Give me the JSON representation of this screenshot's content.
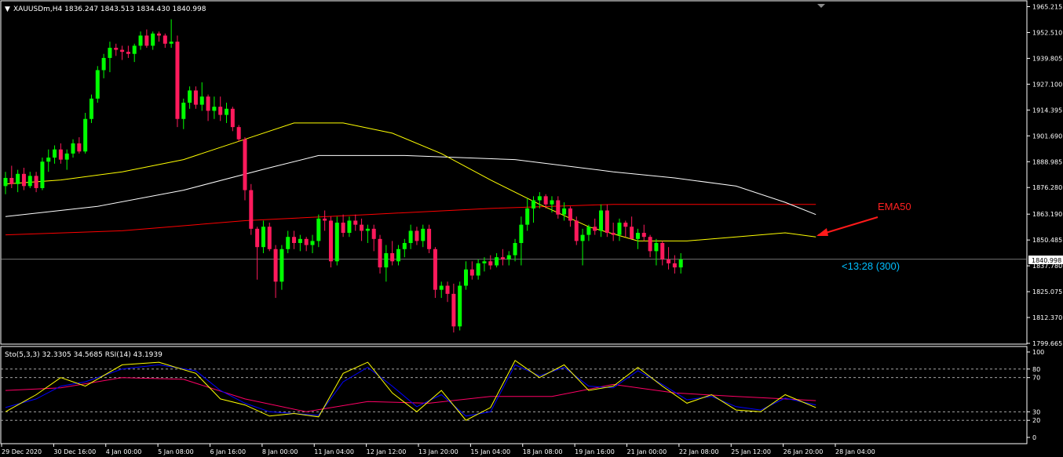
{
  "window": {
    "header": "XAUUSDm,H4  1836.247 1843.513 1834.430 1840.998",
    "collapse_glyph": "▼"
  },
  "indicator": {
    "header": "Sto(5,3,3) 32.3305 34.5685  RSI(14) 43.1939"
  },
  "annotation": {
    "label": "EMA50",
    "countdown": "<13:28 (300)",
    "label_color": "#ff0000",
    "countdown_color": "#00bfff"
  },
  "price_badge": "1840.998",
  "colors": {
    "background": "#000000",
    "bull": "#00ff00",
    "bear": "#ff1a5c",
    "ema_fast": "#ffff00",
    "ema_mid": "#ffffff",
    "ema_slow": "#ff0000",
    "stoch_main": "#ffff00",
    "stoch_signal": "#0000ff",
    "rsi": "#ff0066"
  },
  "chart_data": {
    "type": "candlestick",
    "symbol": "XAUUSDm",
    "timeframe": "H4",
    "ylim": [
      1799.665,
      1965.215
    ],
    "price_ticks": [
      "1965.215",
      "1952.510",
      "1939.805",
      "1927.100",
      "1914.395",
      "1901.690",
      "1888.985",
      "1876.280",
      "1863.190",
      "1850.485",
      "1837.780",
      "1825.075",
      "1812.370",
      "1799.665"
    ],
    "last_price": 1840.998,
    "x_labels": [
      "29 Dec 2020",
      "30 Dec 16:00",
      "4 Jan 00:00",
      "5 Jan 08:00",
      "6 Jan 16:00",
      "8 Jan 00:00",
      "11 Jan 04:00",
      "12 Jan 12:00",
      "13 Jan 20:00",
      "15 Jan 04:00",
      "18 Jan 08:00",
      "19 Jan 16:00",
      "21 Jan 00:00",
      "22 Jan 08:00",
      "25 Jan 12:00",
      "26 Jan 20:00",
      "28 Jan 04:00"
    ],
    "ohlc": [
      [
        1877,
        1884,
        1873,
        1881
      ],
      [
        1881,
        1887,
        1876,
        1878
      ],
      [
        1878,
        1885,
        1874,
        1883
      ],
      [
        1883,
        1886,
        1875,
        1877
      ],
      [
        1877,
        1884,
        1876,
        1882
      ],
      [
        1882,
        1884,
        1874,
        1876
      ],
      [
        1876,
        1891,
        1875,
        1889
      ],
      [
        1889,
        1895,
        1884,
        1891
      ],
      [
        1891,
        1897,
        1888,
        1895
      ],
      [
        1895,
        1898,
        1888,
        1890
      ],
      [
        1890,
        1895,
        1885,
        1893
      ],
      [
        1893,
        1900,
        1891,
        1898
      ],
      [
        1898,
        1901,
        1893,
        1894
      ],
      [
        1894,
        1913,
        1893,
        1910
      ],
      [
        1910,
        1922,
        1908,
        1920
      ],
      [
        1920,
        1936,
        1918,
        1934
      ],
      [
        1934,
        1942,
        1930,
        1940
      ],
      [
        1940,
        1948,
        1933,
        1945
      ],
      [
        1945,
        1947,
        1941,
        1944
      ],
      [
        1944,
        1946,
        1939,
        1943
      ],
      [
        1943,
        1946,
        1940,
        1942
      ],
      [
        1942,
        1947,
        1938,
        1946
      ],
      [
        1946,
        1953,
        1944,
        1951
      ],
      [
        1951,
        1954,
        1945,
        1946
      ],
      [
        1946,
        1953,
        1944,
        1952
      ],
      [
        1952,
        1953,
        1948,
        1951
      ],
      [
        1951,
        1952,
        1945,
        1947
      ],
      [
        1947,
        1959,
        1945,
        1948
      ],
      [
        1948,
        1951,
        1906,
        1910
      ],
      [
        1910,
        1920,
        1905,
        1918
      ],
      [
        1918,
        1926,
        1915,
        1924
      ],
      [
        1924,
        1926,
        1915,
        1917
      ],
      [
        1917,
        1928,
        1914,
        1921
      ],
      [
        1921,
        1922,
        1909,
        1914
      ],
      [
        1914,
        1921,
        1910,
        1916
      ],
      [
        1916,
        1921,
        1909,
        1912
      ],
      [
        1912,
        1918,
        1908,
        1915
      ],
      [
        1915,
        1916,
        1904,
        1906
      ],
      [
        1906,
        1907,
        1899,
        1900
      ],
      [
        1900,
        1901,
        1870,
        1875
      ],
      [
        1875,
        1878,
        1853,
        1856
      ],
      [
        1856,
        1857,
        1831,
        1847
      ],
      [
        1847,
        1860,
        1844,
        1857
      ],
      [
        1857,
        1859,
        1845,
        1846
      ],
      [
        1846,
        1848,
        1822,
        1830
      ],
      [
        1830,
        1848,
        1826,
        1846
      ],
      [
        1846,
        1855,
        1844,
        1852
      ],
      [
        1852,
        1855,
        1846,
        1849
      ],
      [
        1849,
        1853,
        1845,
        1851
      ],
      [
        1851,
        1852,
        1845,
        1848
      ],
      [
        1848,
        1853,
        1844,
        1850
      ],
      [
        1850,
        1863,
        1847,
        1861
      ],
      [
        1861,
        1865,
        1855,
        1860
      ],
      [
        1860,
        1862,
        1837,
        1840
      ],
      [
        1840,
        1862,
        1838,
        1859
      ],
      [
        1859,
        1863,
        1852,
        1854
      ],
      [
        1854,
        1862,
        1852,
        1860
      ],
      [
        1860,
        1863,
        1855,
        1858
      ],
      [
        1858,
        1861,
        1850,
        1855
      ],
      [
        1855,
        1858,
        1849,
        1856
      ],
      [
        1856,
        1858,
        1845,
        1851
      ],
      [
        1851,
        1853,
        1834,
        1837
      ],
      [
        1837,
        1848,
        1830,
        1844
      ],
      [
        1844,
        1850,
        1838,
        1840
      ],
      [
        1840,
        1848,
        1838,
        1846
      ],
      [
        1846,
        1851,
        1842,
        1849
      ],
      [
        1849,
        1858,
        1846,
        1855
      ],
      [
        1855,
        1857,
        1848,
        1850
      ],
      [
        1850,
        1858,
        1847,
        1856
      ],
      [
        1856,
        1858,
        1844,
        1846
      ],
      [
        1846,
        1847,
        1822,
        1826
      ],
      [
        1826,
        1830,
        1822,
        1828
      ],
      [
        1828,
        1830,
        1820,
        1824
      ],
      [
        1824,
        1829,
        1805,
        1808
      ],
      [
        1808,
        1830,
        1806,
        1828
      ],
      [
        1828,
        1840,
        1826,
        1836
      ],
      [
        1836,
        1840,
        1831,
        1833
      ],
      [
        1833,
        1841,
        1831,
        1839
      ],
      [
        1839,
        1842,
        1835,
        1840
      ],
      [
        1840,
        1843,
        1836,
        1838
      ],
      [
        1838,
        1844,
        1837,
        1842
      ],
      [
        1842,
        1846,
        1838,
        1841
      ],
      [
        1841,
        1845,
        1838,
        1843
      ],
      [
        1843,
        1851,
        1840,
        1849
      ],
      [
        1849,
        1862,
        1838,
        1858
      ],
      [
        1858,
        1871,
        1855,
        1866
      ],
      [
        1866,
        1872,
        1859,
        1870
      ],
      [
        1870,
        1874,
        1866,
        1872
      ],
      [
        1872,
        1873,
        1866,
        1868
      ],
      [
        1868,
        1872,
        1864,
        1870
      ],
      [
        1870,
        1872,
        1861,
        1863
      ],
      [
        1863,
        1869,
        1860,
        1866
      ],
      [
        1866,
        1867,
        1857,
        1860
      ],
      [
        1860,
        1862,
        1848,
        1850
      ],
      [
        1850,
        1856,
        1838,
        1853
      ],
      [
        1853,
        1858,
        1850,
        1857
      ],
      [
        1857,
        1861,
        1853,
        1855
      ],
      [
        1855,
        1868,
        1852,
        1865
      ],
      [
        1865,
        1868,
        1852,
        1854
      ],
      [
        1854,
        1859,
        1850,
        1853
      ],
      [
        1853,
        1861,
        1850,
        1859
      ],
      [
        1859,
        1860,
        1852,
        1857
      ],
      [
        1857,
        1862,
        1852,
        1851
      ],
      [
        1851,
        1856,
        1846,
        1854
      ],
      [
        1854,
        1858,
        1850,
        1852
      ],
      [
        1852,
        1853,
        1842,
        1845
      ],
      [
        1845,
        1851,
        1838,
        1849
      ],
      [
        1849,
        1850,
        1838,
        1841
      ],
      [
        1841,
        1847,
        1836,
        1839
      ],
      [
        1839,
        1843,
        1834,
        1837
      ],
      [
        1837,
        1844,
        1834,
        1841
      ]
    ],
    "ema_fast": [
      [
        1,
        1878
      ],
      [
        10,
        1880
      ],
      [
        20,
        1884
      ],
      [
        30,
        1890
      ],
      [
        40,
        1900
      ],
      [
        48,
        1908
      ],
      [
        56,
        1908
      ],
      [
        64,
        1903
      ],
      [
        72,
        1893
      ],
      [
        80,
        1880
      ],
      [
        88,
        1868
      ],
      [
        96,
        1857
      ],
      [
        104,
        1850
      ],
      [
        112,
        1850
      ],
      [
        120,
        1852
      ],
      [
        128,
        1854
      ],
      [
        133,
        1852
      ]
    ],
    "ema_mid": [
      [
        1,
        1862
      ],
      [
        16,
        1867
      ],
      [
        30,
        1875
      ],
      [
        44,
        1886
      ],
      [
        52,
        1892
      ],
      [
        66,
        1892
      ],
      [
        84,
        1890
      ],
      [
        100,
        1884
      ],
      [
        110,
        1881
      ],
      [
        120,
        1877
      ],
      [
        128,
        1869
      ],
      [
        133,
        1863
      ]
    ],
    "ema_slow": [
      [
        1,
        1853
      ],
      [
        20,
        1855
      ],
      [
        40,
        1860
      ],
      [
        60,
        1863
      ],
      [
        80,
        1866
      ],
      [
        100,
        1868
      ],
      [
        120,
        1868
      ],
      [
        133,
        1868
      ]
    ],
    "indicator": {
      "ylim": [
        0,
        100
      ],
      "levels": [
        20,
        30,
        70,
        80
      ],
      "level_labels": [
        "100",
        "80",
        "70",
        "30",
        "20",
        "0"
      ],
      "sto_main": [
        [
          1,
          30
        ],
        [
          6,
          50
        ],
        [
          10,
          70
        ],
        [
          14,
          60
        ],
        [
          20,
          85
        ],
        [
          26,
          88
        ],
        [
          32,
          75
        ],
        [
          36,
          45
        ],
        [
          40,
          38
        ],
        [
          44,
          25
        ],
        [
          48,
          28
        ],
        [
          52,
          24
        ],
        [
          56,
          75
        ],
        [
          60,
          88
        ],
        [
          64,
          52
        ],
        [
          68,
          30
        ],
        [
          72,
          55
        ],
        [
          76,
          20
        ],
        [
          80,
          35
        ],
        [
          84,
          90
        ],
        [
          88,
          70
        ],
        [
          92,
          85
        ],
        [
          96,
          55
        ],
        [
          100,
          60
        ],
        [
          104,
          82
        ],
        [
          108,
          60
        ],
        [
          112,
          40
        ],
        [
          116,
          50
        ],
        [
          120,
          32
        ],
        [
          124,
          30
        ],
        [
          128,
          50
        ],
        [
          133,
          35
        ]
      ],
      "sto_signal": [
        [
          1,
          35
        ],
        [
          6,
          45
        ],
        [
          10,
          60
        ],
        [
          14,
          65
        ],
        [
          20,
          80
        ],
        [
          26,
          85
        ],
        [
          32,
          78
        ],
        [
          36,
          55
        ],
        [
          40,
          40
        ],
        [
          44,
          30
        ],
        [
          48,
          28
        ],
        [
          52,
          26
        ],
        [
          56,
          65
        ],
        [
          60,
          82
        ],
        [
          64,
          60
        ],
        [
          68,
          36
        ],
        [
          72,
          50
        ],
        [
          76,
          25
        ],
        [
          80,
          30
        ],
        [
          84,
          85
        ],
        [
          88,
          72
        ],
        [
          92,
          82
        ],
        [
          96,
          60
        ],
        [
          100,
          58
        ],
        [
          104,
          78
        ],
        [
          108,
          62
        ],
        [
          112,
          44
        ],
        [
          116,
          48
        ],
        [
          120,
          36
        ],
        [
          124,
          32
        ],
        [
          128,
          46
        ],
        [
          133,
          38
        ]
      ],
      "rsi": [
        [
          1,
          55
        ],
        [
          10,
          58
        ],
        [
          20,
          70
        ],
        [
          30,
          68
        ],
        [
          40,
          45
        ],
        [
          50,
          30
        ],
        [
          60,
          42
        ],
        [
          70,
          40
        ],
        [
          80,
          48
        ],
        [
          90,
          48
        ],
        [
          100,
          62
        ],
        [
          110,
          52
        ],
        [
          120,
          48
        ],
        [
          128,
          45
        ],
        [
          133,
          43
        ]
      ]
    }
  }
}
